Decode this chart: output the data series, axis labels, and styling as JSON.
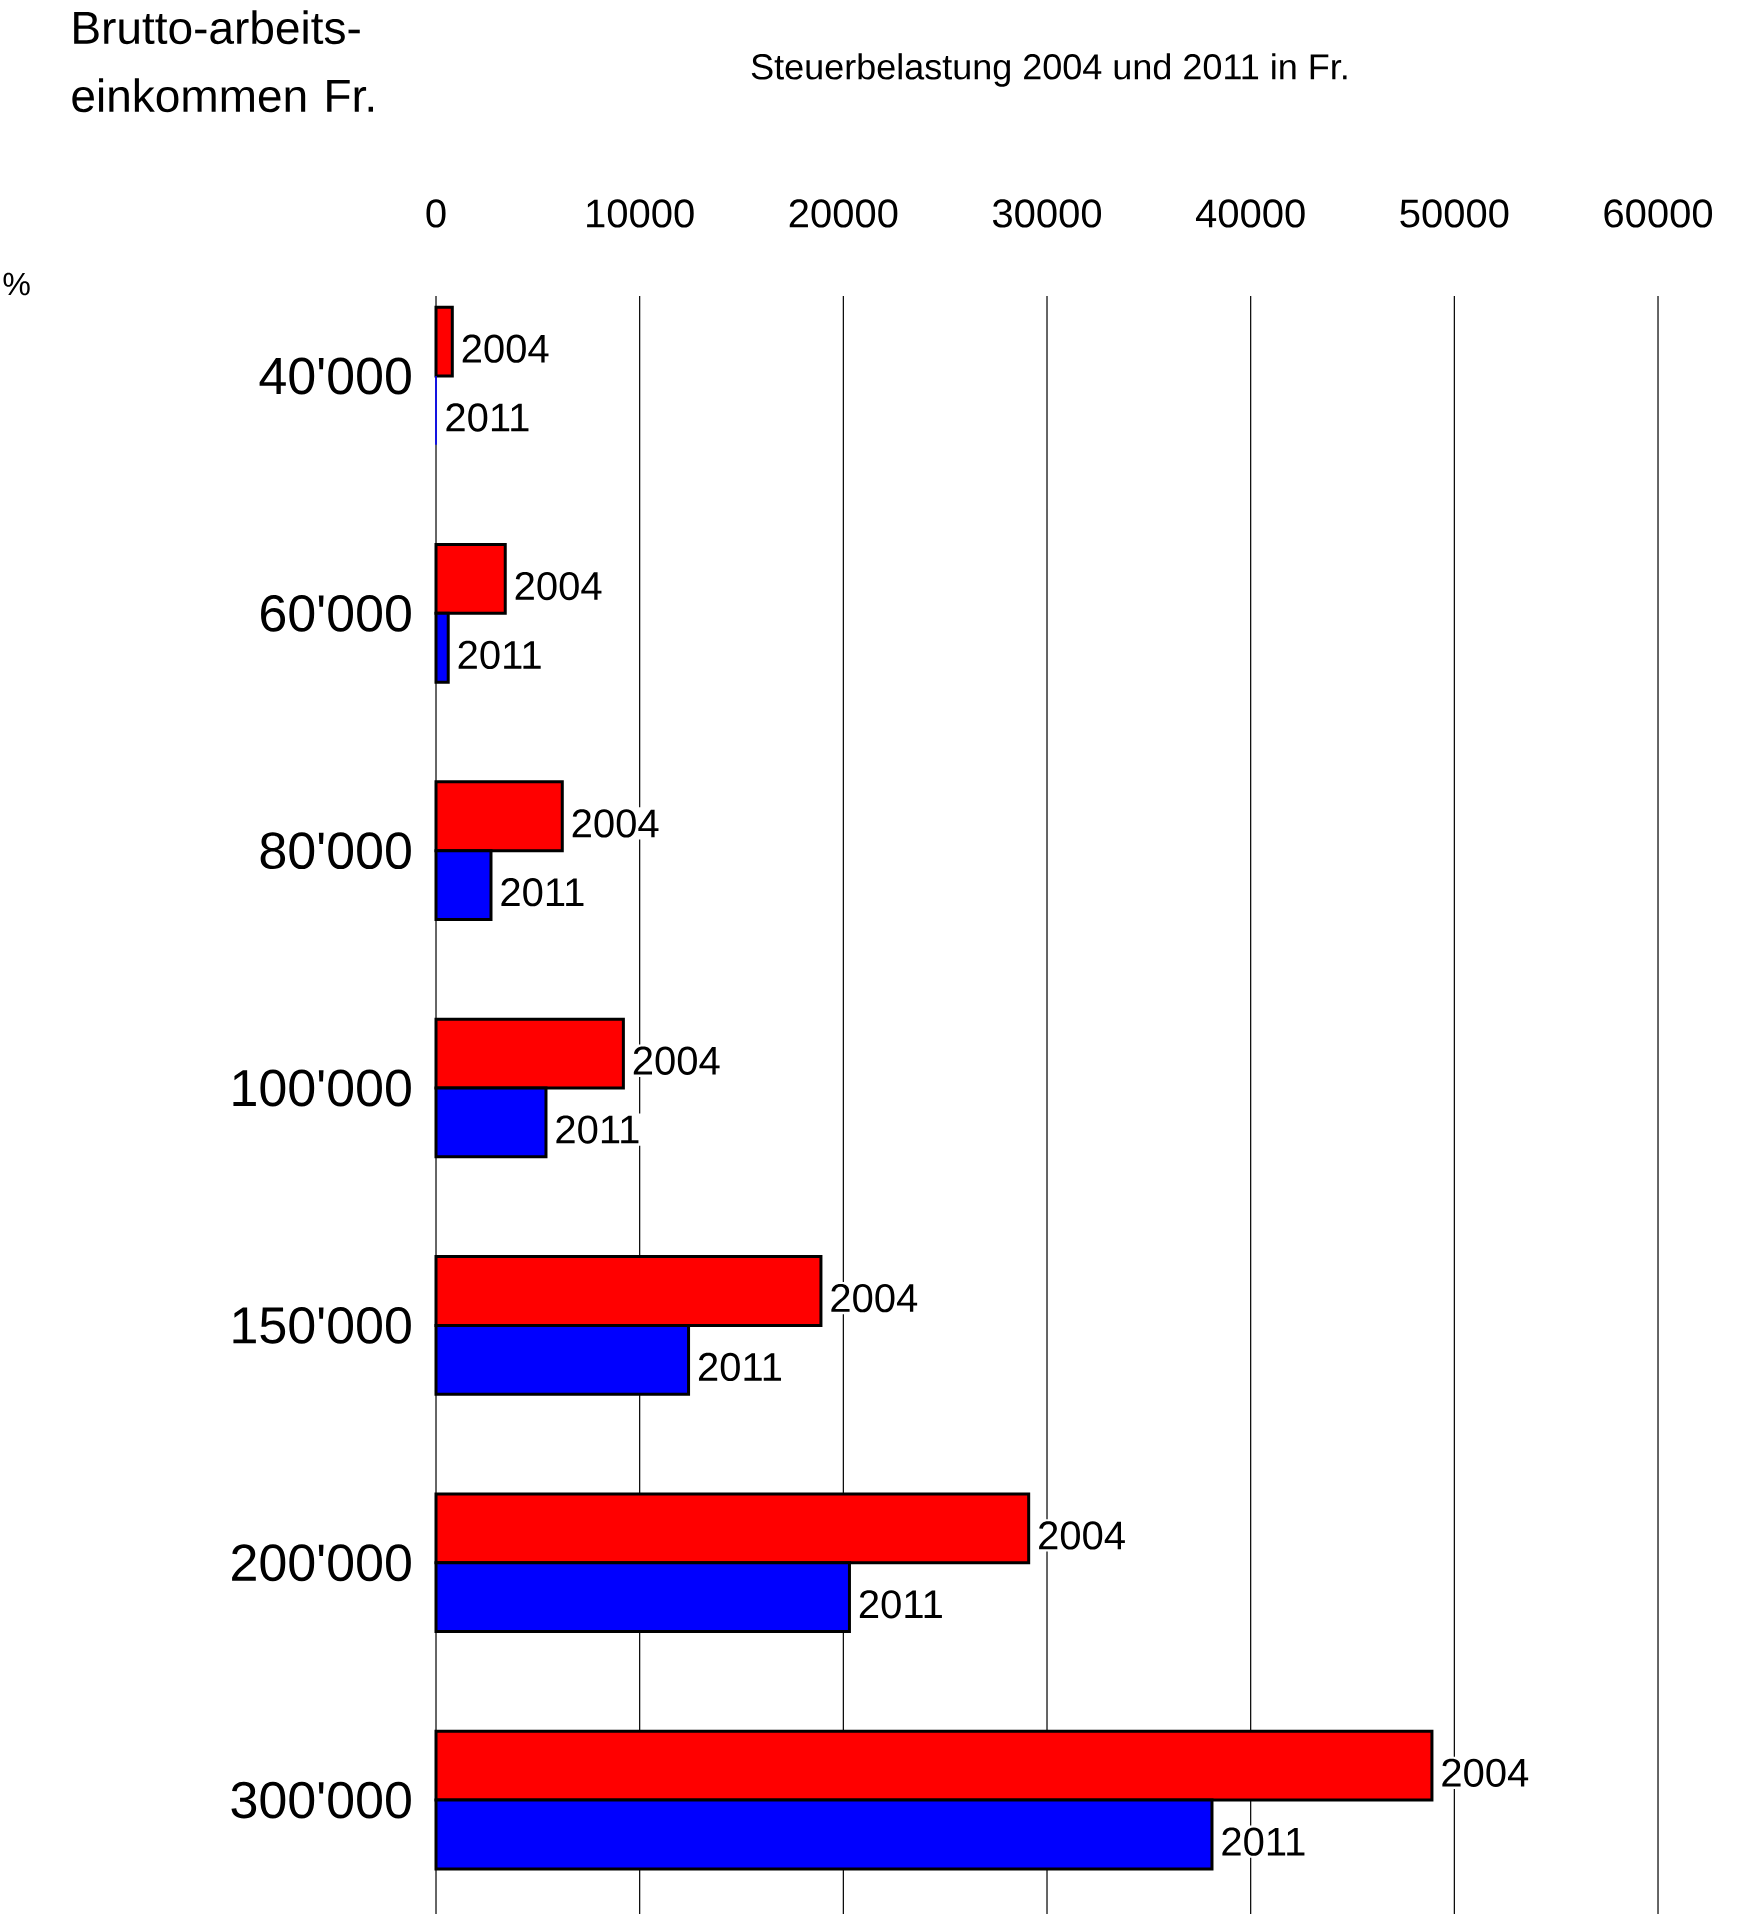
{
  "chart_data": {
    "type": "bar",
    "orientation": "horizontal",
    "title": "Steuerbelastung 2004 und 2011 in Fr.",
    "ylabel": "Brutto-arbeits-einkommen Fr.",
    "annotations": [
      "%"
    ],
    "categories": [
      "40'000",
      "60'000",
      "80'000",
      "100'000",
      "150'000",
      "200'000",
      "300'000"
    ],
    "series": [
      {
        "name": "2004",
        "color": "#ff0000",
        "values": [
          800,
          3400,
          6200,
          9200,
          18900,
          29100,
          48900
        ]
      },
      {
        "name": "2011",
        "color": "#0000ff",
        "values": [
          0,
          600,
          2700,
          5400,
          12400,
          20300,
          38100
        ]
      }
    ],
    "xlim": [
      0,
      60000
    ],
    "xticks": [
      0,
      10000,
      20000,
      30000,
      40000,
      50000,
      60000
    ],
    "grid": "x"
  }
}
